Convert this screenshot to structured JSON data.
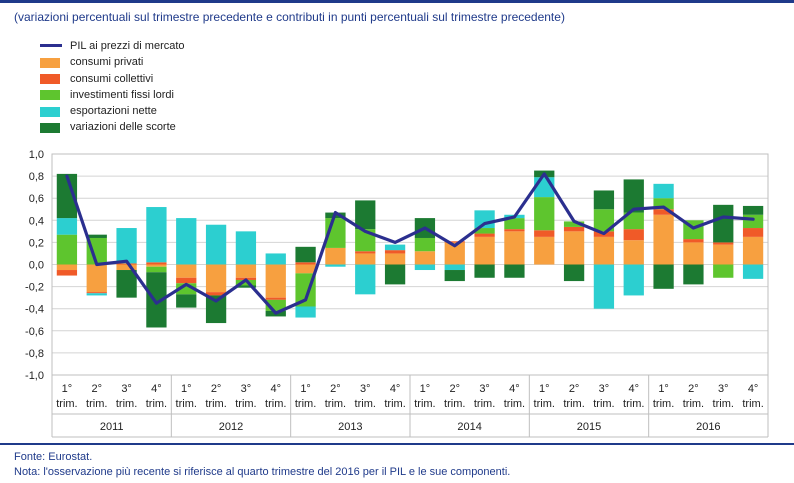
{
  "chart_data": {
    "type": "bar",
    "subtitle": "(variazioni percentuali sul trimestre precedente e contributi in punti percentuali sul trimestre precedente)",
    "y_range": [
      -1.0,
      1.0
    ],
    "y_ticks": [
      "1,0",
      "0,8",
      "0,6",
      "0,4",
      "0,2",
      "0,0",
      "-0,2",
      "-0,4",
      "-0,6",
      "-0,8",
      "-1,0"
    ],
    "x_quarter_labels": [
      "1°\ntrim.",
      "2°\ntrim.",
      "3°\ntrim.",
      "4°\ntrim."
    ],
    "years": [
      "2011",
      "2012",
      "2013",
      "2014",
      "2015",
      "2016"
    ],
    "series": [
      {
        "name": "consumi privati",
        "color": "#f7a040",
        "values": [
          -0.05,
          -0.25,
          -0.05,
          -0.02,
          -0.12,
          -0.25,
          -0.12,
          -0.3,
          -0.08,
          0.15,
          0.1,
          0.1,
          0.12,
          0.2,
          0.25,
          0.3,
          0.25,
          0.3,
          0.25,
          0.22,
          0.45,
          0.2,
          0.18,
          0.25
        ]
      },
      {
        "name": "consumi collettivi",
        "color": "#f05a28",
        "values": [
          -0.05,
          -0.01,
          0.01,
          0.02,
          -0.05,
          -0.03,
          -0.02,
          -0.02,
          0.02,
          0.0,
          0.02,
          0.03,
          0.0,
          0.01,
          0.03,
          0.02,
          0.06,
          0.04,
          0.05,
          0.1,
          0.05,
          0.03,
          0.02,
          0.08
        ]
      },
      {
        "name": "investimenti fissi lordi",
        "color": "#5ec52e",
        "values": [
          0.27,
          0.24,
          0.0,
          -0.05,
          -0.1,
          0.0,
          -0.05,
          -0.1,
          -0.3,
          0.27,
          0.2,
          0.0,
          0.12,
          0.0,
          0.05,
          0.1,
          0.3,
          0.05,
          0.2,
          0.15,
          0.1,
          0.17,
          -0.12,
          0.12
        ]
      },
      {
        "name": "esportazioni nette",
        "color": "#2ccfd0",
        "values": [
          0.15,
          -0.02,
          0.32,
          0.5,
          0.42,
          0.36,
          0.3,
          0.1,
          -0.1,
          -0.02,
          -0.27,
          0.05,
          -0.05,
          -0.05,
          0.16,
          0.03,
          0.18,
          0.0,
          -0.4,
          -0.28,
          0.13,
          0.0,
          0.0,
          -0.13
        ]
      },
      {
        "name": "variazioni delle scorte",
        "color": "#1c7a32",
        "values": [
          0.4,
          0.03,
          -0.25,
          -0.5,
          -0.12,
          -0.25,
          -0.02,
          -0.05,
          0.14,
          0.05,
          0.26,
          -0.18,
          0.18,
          -0.1,
          -0.12,
          -0.12,
          0.06,
          -0.15,
          0.17,
          0.3,
          -0.22,
          -0.18,
          0.34,
          0.08
        ]
      }
    ],
    "line": {
      "name": "PIL ai prezzi di mercato",
      "color": "#2b2f8f",
      "values": [
        0.8,
        0.0,
        0.03,
        -0.35,
        -0.18,
        -0.33,
        -0.14,
        -0.44,
        -0.32,
        0.47,
        0.3,
        0.2,
        0.33,
        0.17,
        0.37,
        0.43,
        0.82,
        0.39,
        0.28,
        0.5,
        0.52,
        0.33,
        0.43,
        0.41
      ]
    }
  },
  "legend_order": [
    "PIL ai prezzi di mercato",
    "consumi privati",
    "consumi collettivi",
    "investimenti fissi lordi",
    "esportazioni nette",
    "variazioni delle scorte"
  ],
  "footer": {
    "source": "Fonte: Eurostat.",
    "note": "Nota: l'osservazione più recente si riferisce al quarto trimestre del 2016 per il PIL e le sue componenti."
  }
}
